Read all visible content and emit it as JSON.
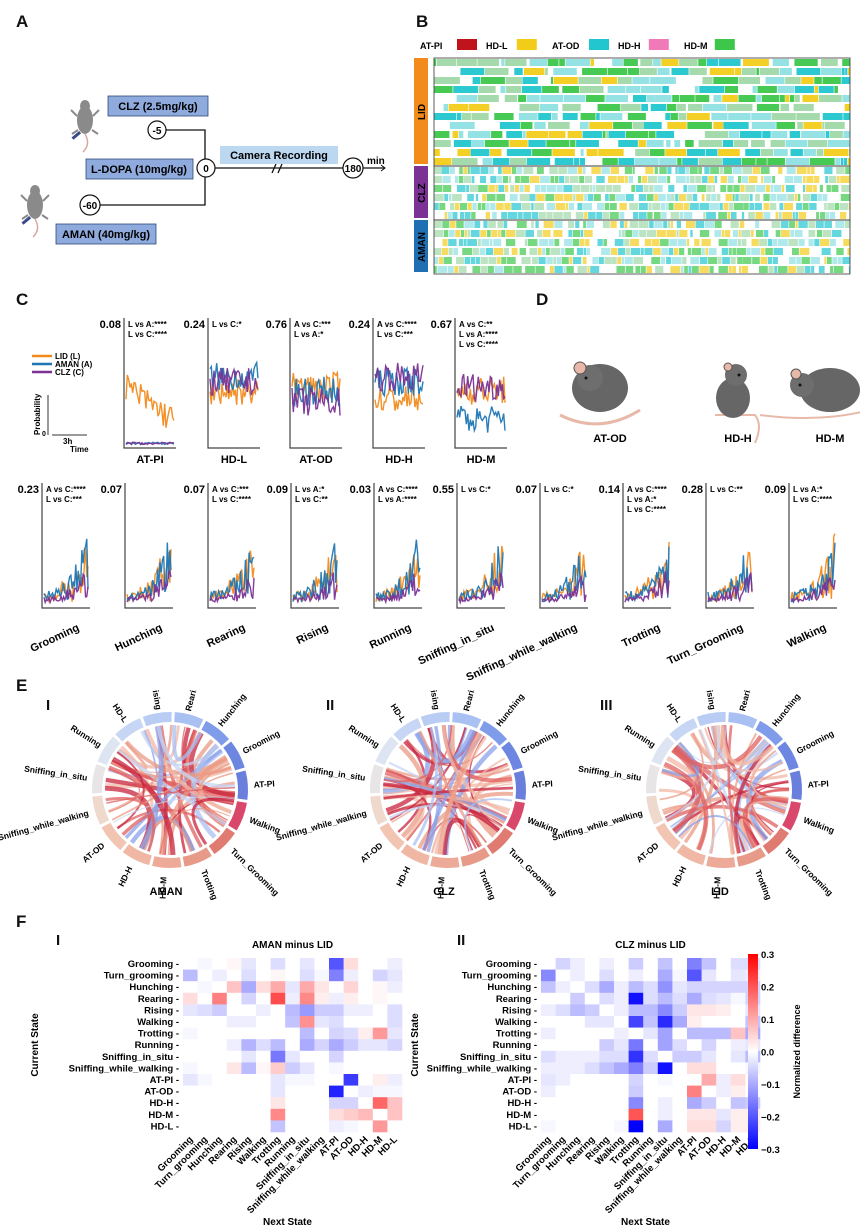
{
  "panels": {
    "A": "A",
    "B": "B",
    "C": "C",
    "D": "D",
    "E": "E",
    "F": "F"
  },
  "panelA": {
    "drugs": [
      {
        "label": "CLZ (2.5mg/kg)",
        "time": "-5"
      },
      {
        "label": "L-DOPA (10mg/kg)",
        "time": "0"
      },
      {
        "label": "AMAN (40mg/kg)",
        "time": "-60"
      }
    ],
    "recording_label": "Camera Recording",
    "end_time": "180",
    "unit": "min"
  },
  "panelB": {
    "legend": [
      {
        "label": "AT-PI",
        "color": "#c0131b"
      },
      {
        "label": "HD-L",
        "color": "#f3cc1a"
      },
      {
        "label": "AT-OD",
        "color": "#21c6cf"
      },
      {
        "label": "HD-H",
        "color": "#ef7ab7"
      },
      {
        "label": "HD-M",
        "color": "#3cc74a"
      }
    ],
    "groups": [
      {
        "label": "LID",
        "color": "#f28a1c",
        "rows": 12
      },
      {
        "label": "CLZ",
        "color": "#7b3294",
        "rows": 6
      },
      {
        "label": "AMAN",
        "color": "#1f6fb2",
        "rows": 6
      }
    ]
  },
  "panelC": {
    "legend": [
      {
        "label": "LID (L)",
        "color": "#f28a1c"
      },
      {
        "label": "AMAN (A)",
        "color": "#1f77b4"
      },
      {
        "label": "CLZ (C)",
        "color": "#7b3294"
      }
    ],
    "scale_ylabel": "Probability",
    "scale_y0": "0",
    "scale_x": "3h",
    "scale_xlabel": "Time",
    "row1": [
      {
        "name": "AT-PI",
        "ymax": "0.08",
        "stats": [
          "L vs A:****",
          "L vs C:****"
        ]
      },
      {
        "name": "HD-L",
        "ymax": "0.24",
        "stats": [
          "L vs C:*"
        ]
      },
      {
        "name": "AT-OD",
        "ymax": "0.76",
        "stats": [
          "A vs C:***",
          "L vs A:*"
        ]
      },
      {
        "name": "HD-H",
        "ymax": "0.24",
        "stats": [
          "A vs C:****",
          "L vs C:***"
        ]
      },
      {
        "name": "HD-M",
        "ymax": "0.67",
        "stats": [
          "A vs C:**",
          "L vs A:****",
          "L vs C:****"
        ]
      }
    ],
    "row2": [
      {
        "name": "Grooming",
        "ymax": "0.23",
        "stats": [
          "A vs C:****",
          "L vs C:***"
        ]
      },
      {
        "name": "Hunching",
        "ymax": "0.07",
        "stats": []
      },
      {
        "name": "Rearing",
        "ymax": "0.07",
        "stats": [
          "A vs C:***",
          "L vs C:****"
        ]
      },
      {
        "name": "Rising",
        "ymax": "0.09",
        "stats": [
          "L vs A:*",
          "L vs C:**"
        ]
      },
      {
        "name": "Running",
        "ymax": "0.03",
        "stats": [
          "A vs C:****",
          "L vs A:****"
        ]
      },
      {
        "name": "Sniffing_in_situ",
        "ymax": "0.55",
        "stats": [
          "L vs C:*"
        ]
      },
      {
        "name": "Sniffing_while_walking",
        "ymax": "0.07",
        "stats": [
          "L vs C:*"
        ]
      },
      {
        "name": "Trotting",
        "ymax": "0.14",
        "stats": [
          "A vs C:****",
          "L vs A:*",
          "L vs C:****"
        ]
      },
      {
        "name": "Turn_Grooming",
        "ymax": "0.28",
        "stats": [
          "L vs C:**"
        ]
      },
      {
        "name": "Walking",
        "ymax": "0.09",
        "stats": [
          "L vs A:*",
          "L vs C:****"
        ]
      }
    ]
  },
  "panelD": {
    "poses": [
      "AT-OD",
      "HD-H",
      "HD-M"
    ]
  },
  "panelE": {
    "labels": [
      "Rising",
      "Rearing",
      "Hunching",
      "Grooming",
      "AT-PI",
      "Walking",
      "Turn_Grooming",
      "Trotting",
      "HD-M",
      "HD-H",
      "AT-OD",
      "Sniffing_while_walking",
      "Sniffing_in_situ",
      "Running",
      "HD-L"
    ],
    "charts": [
      {
        "roman": "I",
        "title": "AMAN"
      },
      {
        "roman": "II",
        "title": "CLZ"
      },
      {
        "roman": "III",
        "title": "LID"
      }
    ]
  },
  "chart_data": [
    {
      "type": "heatmap",
      "title": "AMAN minus LID",
      "xlabel": "Next State",
      "ylabel": "Current State",
      "rows": [
        "Grooming",
        "Turn_grooming",
        "Hunching",
        "Rearing",
        "Rising",
        "Walking",
        "Trotting",
        "Running",
        "Sniffing_in_situ",
        "Sniffing_while_walking",
        "AT-PI",
        "AT-OD",
        "HD-H",
        "HD-M",
        "HD-L"
      ],
      "cols": [
        "Grooming",
        "Turn_grooming",
        "Hunching",
        "Rearing",
        "Rising",
        "Walking",
        "Trotting",
        "Running",
        "Sniffing_in_situ",
        "Sniffing_while_walking",
        "AT-PI",
        "AT-OD",
        "HD-H",
        "HD-M",
        "HD-L"
      ],
      "values": [
        [
          0,
          -0.01,
          0,
          0.01,
          -0.03,
          0,
          -0.04,
          0,
          -0.03,
          0,
          -0.2,
          0.04,
          0,
          0,
          -0.02
        ],
        [
          -0.08,
          0,
          -0.02,
          0,
          -0.04,
          0,
          0.01,
          0,
          -0.04,
          -0.01,
          -0.15,
          -0.02,
          0,
          -0.05,
          -0.03
        ],
        [
          0,
          -0.01,
          0,
          0.07,
          -0.1,
          0.04,
          0.1,
          -0.03,
          0.1,
          0.03,
          0,
          0.05,
          0,
          0.01,
          -0.02
        ],
        [
          0.04,
          0,
          0.15,
          0,
          -0.05,
          0,
          0.21,
          -0.02,
          0.14,
          0.02,
          -0.02,
          0.02,
          0,
          0.01,
          0
        ],
        [
          -0.03,
          -0.04,
          -0.06,
          0,
          0,
          -0.02,
          0,
          -0.08,
          -0.12,
          -0.06,
          -0.06,
          -0.02,
          -0.02,
          0,
          -0.04
        ],
        [
          0,
          0,
          0,
          -0.02,
          -0.02,
          0,
          0,
          -0.07,
          0.13,
          -0.03,
          -0.04,
          0,
          0,
          0,
          -0.04
        ],
        [
          -0.01,
          0,
          0,
          0,
          0,
          0,
          0,
          0,
          -0.08,
          0,
          -0.05,
          -0.04,
          0.02,
          0.12,
          -0.03
        ],
        [
          0,
          0,
          0,
          -0.02,
          -0.09,
          -0.04,
          -0.08,
          0,
          -0.1,
          -0.05,
          -0.1,
          -0.06,
          -0.03,
          -0.03,
          -0.05
        ],
        [
          0,
          0,
          0,
          0,
          -0.03,
          0,
          -0.16,
          -0.03,
          0,
          0,
          -0.05,
          0,
          0,
          0,
          0
        ],
        [
          -0.01,
          0,
          0,
          0.03,
          -0.08,
          0.01,
          0.06,
          -0.06,
          -0.03,
          0,
          -0.01,
          0,
          0,
          0,
          0
        ],
        [
          -0.03,
          -0.01,
          0,
          0,
          0,
          0,
          -0.03,
          -0.01,
          -0.01,
          0,
          0,
          -0.23,
          0,
          0.02,
          -0.02
        ],
        [
          0,
          0,
          0,
          0,
          0,
          0,
          -0.03,
          0,
          0,
          0,
          -0.26,
          0,
          -0.02,
          -0.01,
          -0.01
        ],
        [
          0,
          0,
          0,
          0,
          0,
          0,
          0.03,
          0,
          0,
          0,
          -0.05,
          -0.05,
          0,
          0.18,
          0.07
        ],
        [
          0,
          0,
          0,
          0,
          0,
          0,
          0.14,
          0,
          0,
          0,
          0.04,
          0.06,
          0.08,
          0,
          0.07
        ],
        [
          0,
          0,
          0,
          0,
          0,
          0,
          -0.07,
          0,
          0,
          0,
          -0.02,
          -0.01,
          0,
          0.12,
          0
        ]
      ],
      "vmin": -0.3,
      "vmax": 0.3
    },
    {
      "type": "heatmap",
      "title": "CLZ minus LID",
      "xlabel": "Next State",
      "ylabel": "Current State",
      "colorbar_label": "Normalized difference",
      "colorbar_ticks": [
        "0.3",
        "0.2",
        "0.1",
        "0.0",
        "−0.1",
        "−0.2",
        "−0.3"
      ],
      "rows": [
        "Grooming",
        "Turn_grooming",
        "Hunching",
        "Rearing",
        "Rising",
        "Walking",
        "Trotting",
        "Running",
        "Sniffing_in_situ",
        "Sniffing_while_walking",
        "AT-PI",
        "AT-OD",
        "HD-H",
        "HD-M",
        "HD-L"
      ],
      "cols": [
        "Grooming",
        "Turn_grooming",
        "Hunching",
        "Rearing",
        "Rising",
        "Walking",
        "Trotting",
        "Running",
        "Sniffing_in_situ",
        "Sniffing_while_walking",
        "AT-PI",
        "AT-OD",
        "HD-H",
        "HD-M",
        "HD-L"
      ],
      "values": [
        [
          0,
          -0.05,
          -0.02,
          0,
          -0.02,
          0,
          -0.06,
          0,
          -0.07,
          0,
          -0.15,
          -0.07,
          0,
          -0.04,
          -0.04
        ],
        [
          -0.14,
          0,
          -0.02,
          0,
          -0.04,
          0,
          -0.02,
          0,
          -0.1,
          -0.01,
          -0.2,
          -0.03,
          0,
          -0.03,
          -0.02
        ],
        [
          -0.07,
          -0.02,
          0,
          -0.04,
          -0.1,
          -0.02,
          -0.08,
          -0.04,
          -0.13,
          -0.03,
          -0.05,
          -0.05,
          -0.05,
          -0.05,
          -0.05
        ],
        [
          0,
          0,
          -0.06,
          0,
          -0.04,
          -0.02,
          -0.28,
          -0.04,
          -0.08,
          -0.04,
          -0.1,
          -0.04,
          -0.03,
          -0.01,
          -0.05
        ],
        [
          -0.02,
          -0.04,
          -0.08,
          -0.06,
          0,
          -0.02,
          -0.08,
          -0.08,
          -0.14,
          -0.06,
          0.03,
          0.03,
          0.02,
          0,
          -0.03
        ],
        [
          0,
          0,
          0,
          -0.03,
          -0.03,
          0,
          -0.22,
          -0.07,
          -0.25,
          -0.1,
          0.02,
          0,
          0,
          0,
          -0.07
        ],
        [
          -0.02,
          0,
          0,
          0,
          0,
          -0.02,
          0,
          -0.03,
          -0.11,
          0,
          -0.08,
          -0.08,
          -0.08,
          0.07,
          -0.1
        ],
        [
          0,
          0,
          0,
          0,
          -0.06,
          -0.03,
          -0.16,
          0,
          -0.11,
          -0.04,
          0,
          -0.05,
          0,
          -0.02,
          -0.03
        ],
        [
          -0.04,
          -0.02,
          -0.02,
          -0.02,
          -0.04,
          -0.04,
          -0.24,
          -0.04,
          0,
          -0.06,
          -0.06,
          -0.03,
          0,
          -0.03,
          -0.08
        ],
        [
          -0.02,
          -0.02,
          -0.02,
          -0.04,
          -0.07,
          -0.1,
          -0.15,
          -0.06,
          -0.28,
          0,
          0.04,
          0.04,
          0,
          0,
          -0.01
        ],
        [
          -0.03,
          -0.02,
          0,
          0,
          0,
          0,
          -0.05,
          0,
          -0.01,
          0,
          0,
          0.1,
          -0.02,
          0.04,
          0
        ],
        [
          -0.02,
          0,
          0,
          0,
          0,
          0,
          -0.06,
          0,
          0,
          0,
          0.15,
          0,
          -0.02,
          0.02,
          0
        ],
        [
          0,
          0,
          0,
          0,
          0,
          0,
          -0.14,
          0,
          -0.02,
          0,
          -0.1,
          -0.06,
          0,
          -0.07,
          -0.06
        ],
        [
          0,
          0,
          0,
          0,
          0,
          0,
          0.2,
          0,
          -0.02,
          0,
          0.03,
          0.03,
          -0.03,
          0.02,
          0.02
        ],
        [
          -0.01,
          0,
          0,
          0,
          0,
          -0.01,
          -0.3,
          0,
          -0.1,
          0,
          0.04,
          0.04,
          -0.05,
          0.02,
          0.02
        ]
      ],
      "vmin": -0.3,
      "vmax": 0.3
    }
  ],
  "panelF": {
    "roman": [
      "I",
      "II"
    ]
  }
}
